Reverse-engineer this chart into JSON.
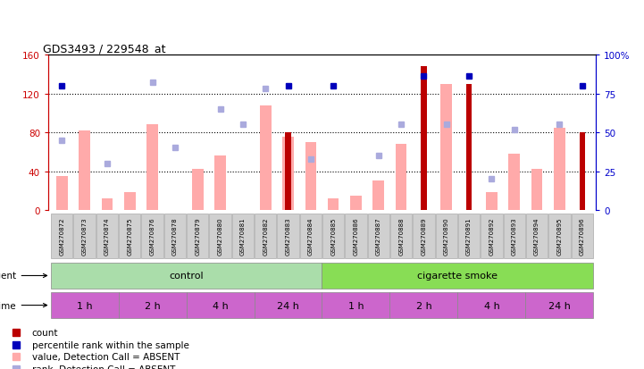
{
  "title": "GDS3493 / 229548_at",
  "samples": [
    "GSM270872",
    "GSM270873",
    "GSM270874",
    "GSM270875",
    "GSM270876",
    "GSM270878",
    "GSM270879",
    "GSM270880",
    "GSM270881",
    "GSM270882",
    "GSM270883",
    "GSM270884",
    "GSM270885",
    "GSM270886",
    "GSM270887",
    "GSM270888",
    "GSM270889",
    "GSM270890",
    "GSM270891",
    "GSM270892",
    "GSM270893",
    "GSM270894",
    "GSM270895",
    "GSM270896"
  ],
  "count_values": [
    0,
    0,
    0,
    0,
    0,
    0,
    0,
    0,
    0,
    0,
    80,
    0,
    0,
    0,
    0,
    0,
    148,
    0,
    130,
    0,
    0,
    0,
    0,
    80
  ],
  "rank_values": [
    80,
    0,
    0,
    0,
    0,
    0,
    0,
    0,
    0,
    0,
    80,
    0,
    80,
    0,
    0,
    0,
    86,
    0,
    86,
    0,
    0,
    0,
    0,
    80
  ],
  "value_absent": [
    35,
    82,
    12,
    18,
    88,
    0,
    42,
    56,
    0,
    108,
    75,
    70,
    12,
    15,
    30,
    68,
    0,
    130,
    0,
    18,
    58,
    42,
    85,
    0
  ],
  "rank_absent": [
    45,
    0,
    30,
    0,
    82,
    40,
    0,
    65,
    55,
    78,
    0,
    33,
    0,
    0,
    35,
    55,
    0,
    55,
    0,
    20,
    52,
    0,
    55,
    0
  ],
  "left_yaxis_color": "#cc0000",
  "right_yaxis_color": "#0000cc",
  "left_ylim": [
    0,
    160
  ],
  "right_ylim": [
    0,
    100
  ],
  "left_yticks": [
    0,
    40,
    80,
    120,
    160
  ],
  "right_yticks": [
    0,
    25,
    50,
    75,
    100
  ],
  "count_color": "#bb0000",
  "rank_color": "#0000bb",
  "value_absent_color": "#ffaaaa",
  "rank_absent_color": "#aaaadd",
  "agent_control_label": "control",
  "agent_smoke_label": "cigarette smoke",
  "agent_label": "agent",
  "time_label": "time",
  "control_color": "#aaddaa",
  "smoke_color": "#88dd55",
  "time_color": "#cc66cc",
  "time_ctrl_bounds": [
    [
      0,
      2,
      "1 h"
    ],
    [
      3,
      5,
      "2 h"
    ],
    [
      6,
      8,
      "4 h"
    ],
    [
      9,
      11,
      "24 h"
    ]
  ],
  "time_smoke_bounds": [
    [
      12,
      14,
      "1 h"
    ],
    [
      15,
      17,
      "2 h"
    ],
    [
      18,
      20,
      "4 h"
    ],
    [
      21,
      23,
      "24 h"
    ]
  ]
}
